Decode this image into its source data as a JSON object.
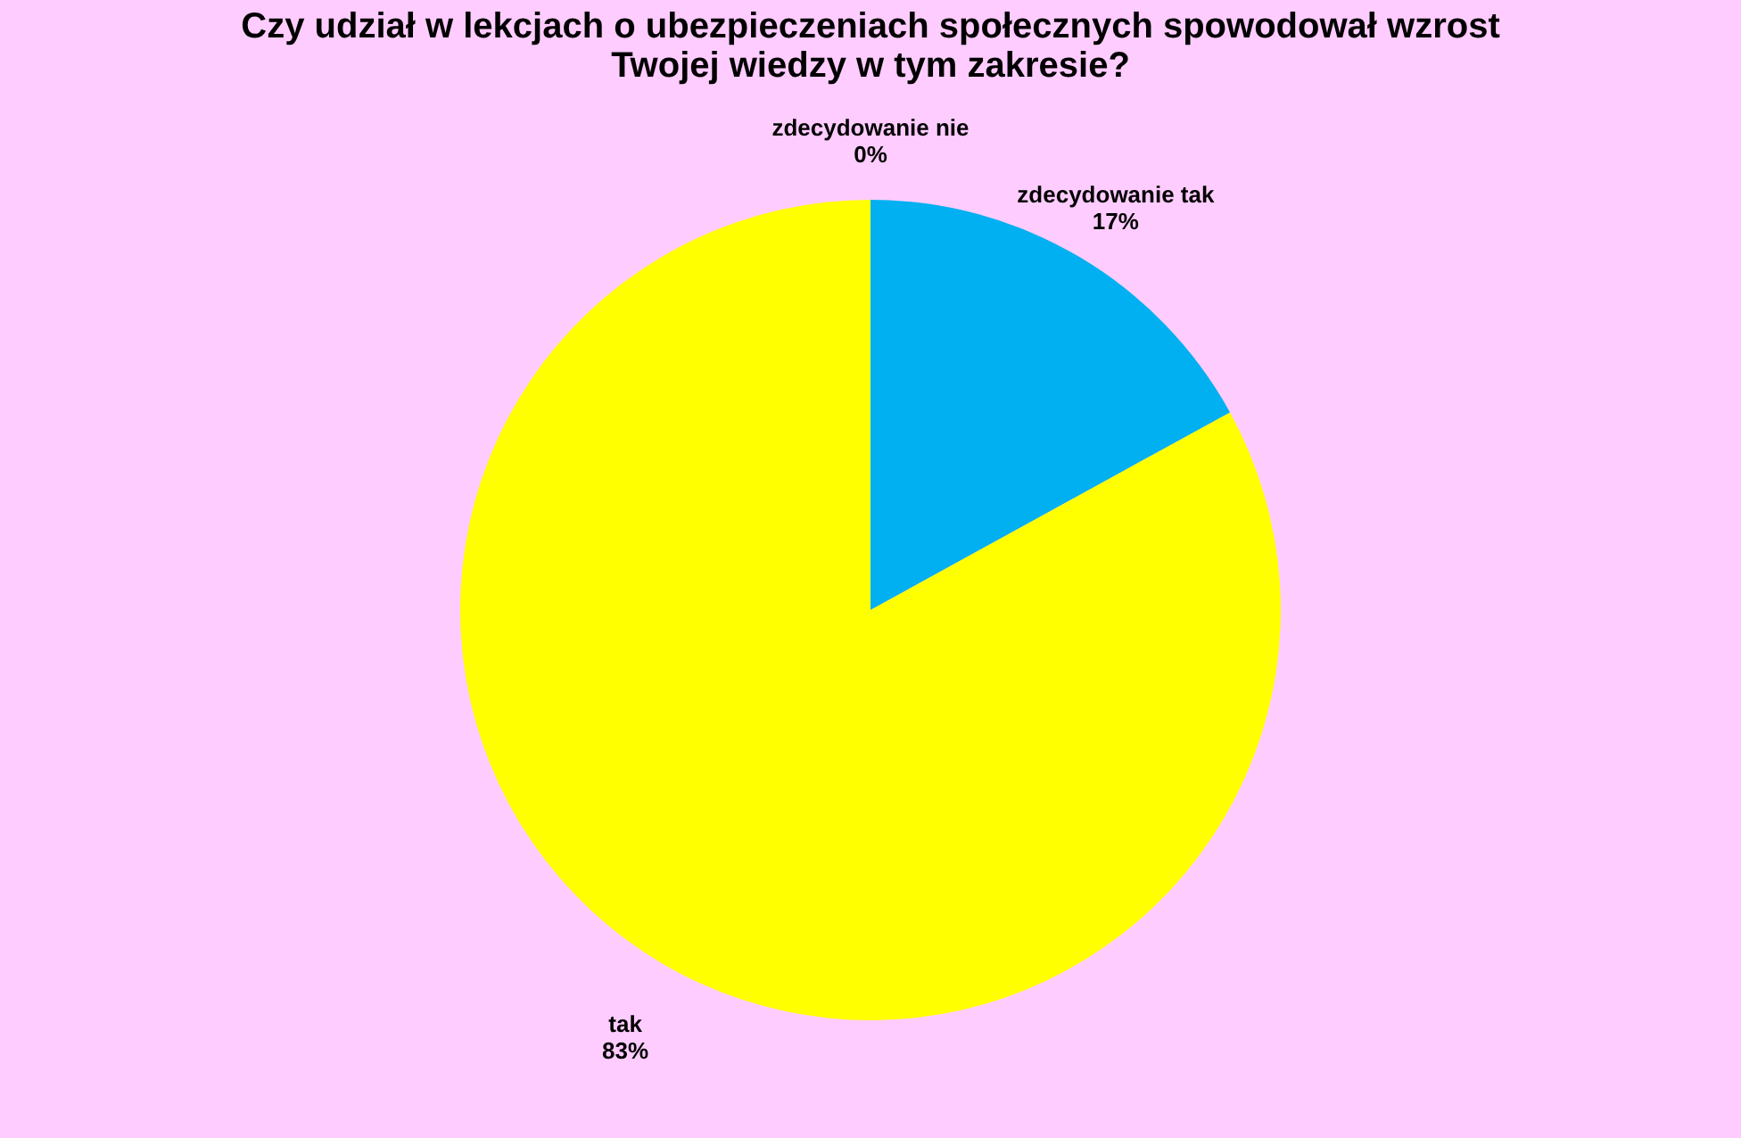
{
  "chart_data": {
    "type": "pie",
    "title": "Czy udział w lekcjach o ubezpieczeniach społecznych spowodował wzrost\nTwojej wiedzy w tym zakresie?",
    "categories": [
      "zdecydowanie tak",
      "tak",
      "zdecydowanie nie"
    ],
    "values": [
      17,
      83,
      0
    ],
    "value_labels": [
      "17%",
      "83%",
      "0%"
    ],
    "colors": [
      "#00b0f0",
      "#ffff00",
      "#ff6600"
    ],
    "legend": false
  }
}
